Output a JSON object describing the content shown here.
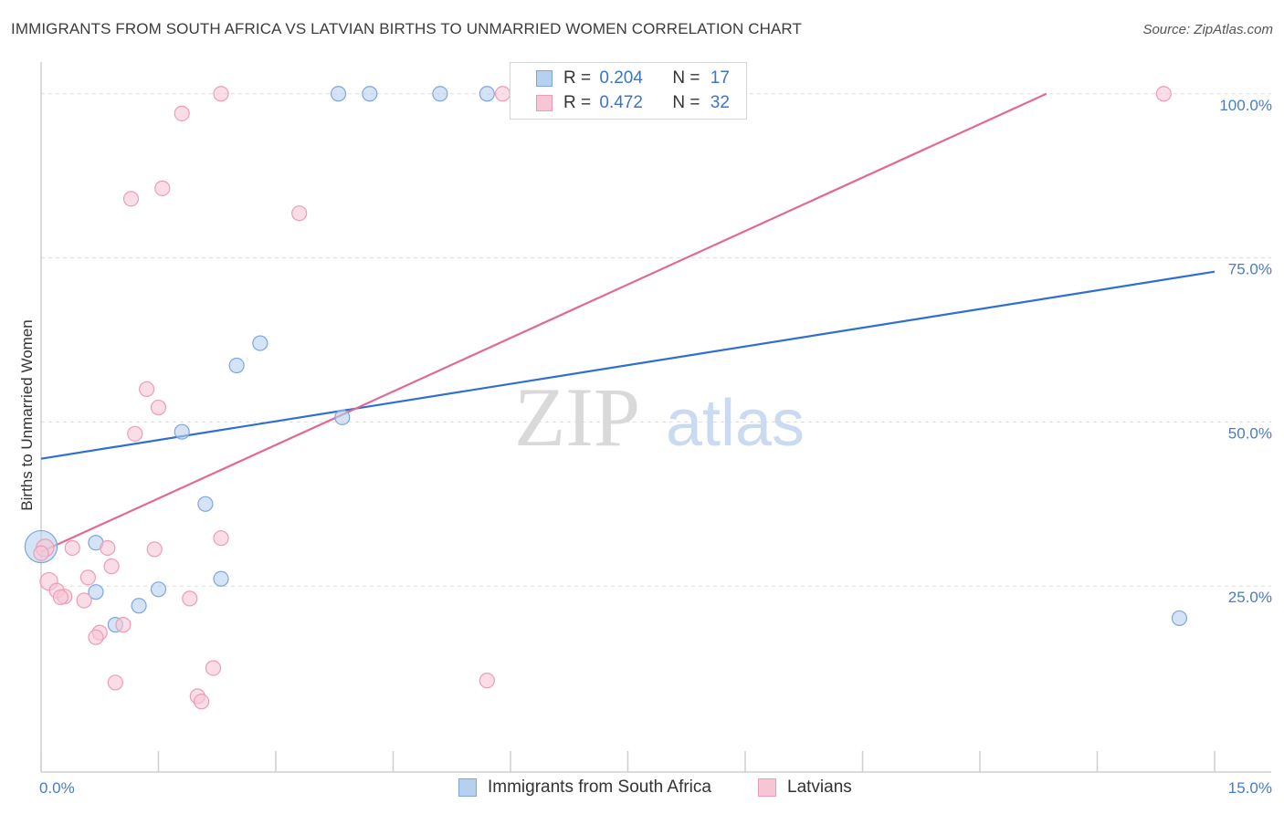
{
  "header": {
    "title": "IMMIGRANTS FROM SOUTH AFRICA VS LATVIAN BIRTHS TO UNMARRIED WOMEN CORRELATION CHART",
    "source": "Source: ZipAtlas.com"
  },
  "watermark": {
    "zip": "ZIP",
    "atlas": "atlas"
  },
  "legend": {
    "r_label": "R =",
    "n_label": "N =",
    "series": [
      {
        "r": "0.204",
        "n": "17"
      },
      {
        "r": "0.472",
        "n": "32"
      }
    ]
  },
  "bottom_legend": [
    "Immigrants from South Africa",
    "Latvians"
  ],
  "colors": {
    "blue_fill": "#b8d0ef",
    "blue_stroke": "#7ea6dd",
    "blue_line": "#2f6fd0",
    "pink_fill": "#f7c6d5",
    "pink_stroke": "#ec9db5",
    "pink_line": "#e06a94",
    "grid": "#dcdcdc",
    "tick": "#4a7cc9"
  },
  "chart_data": {
    "type": "scatter",
    "title": "IMMIGRANTS FROM SOUTH AFRICA VS LATVIAN BIRTHS TO UNMARRIED WOMEN CORRELATION CHART",
    "xlabel": "",
    "ylabel": "Births to Unmarried Women",
    "xlim": [
      0,
      15
    ],
    "ylim": [
      0,
      104
    ],
    "x_tick_labels": [
      {
        "value": 0,
        "label": "0.0%"
      },
      {
        "value": 15,
        "label": "15.0%"
      }
    ],
    "y_tick_labels": [
      {
        "value": 25,
        "label": "25.0%"
      },
      {
        "value": 50,
        "label": "50.0%"
      },
      {
        "value": 75,
        "label": "75.0%"
      },
      {
        "value": 100,
        "label": "100.0%"
      }
    ],
    "series": [
      {
        "name": "Immigrants from South Africa",
        "color": "blue",
        "points": [
          {
            "x": 3.8,
            "y": 100,
            "s": 1
          },
          {
            "x": 4.2,
            "y": 100,
            "s": 1
          },
          {
            "x": 5.1,
            "y": 100,
            "s": 1
          },
          {
            "x": 5.7,
            "y": 100,
            "s": 1
          },
          {
            "x": 2.8,
            "y": 62,
            "s": 1
          },
          {
            "x": 2.5,
            "y": 58.6,
            "s": 1
          },
          {
            "x": 3.85,
            "y": 50.7,
            "s": 1
          },
          {
            "x": 1.8,
            "y": 48.5,
            "s": 1
          },
          {
            "x": 2.1,
            "y": 37.5,
            "s": 1
          },
          {
            "x": 0.0,
            "y": 31,
            "s": 2.2
          },
          {
            "x": 0.7,
            "y": 31.6,
            "s": 1
          },
          {
            "x": 2.3,
            "y": 26.1,
            "s": 1
          },
          {
            "x": 1.5,
            "y": 24.5,
            "s": 1
          },
          {
            "x": 0.7,
            "y": 24.1,
            "s": 1
          },
          {
            "x": 1.25,
            "y": 22,
            "s": 1
          },
          {
            "x": 0.95,
            "y": 19.1,
            "s": 1
          },
          {
            "x": 14.55,
            "y": 20.1,
            "s": 1
          }
        ],
        "trend": {
          "x1": 0,
          "y1": 44.4,
          "x2": 15,
          "y2": 72.9
        }
      },
      {
        "name": "Latvians",
        "color": "pink",
        "points": [
          {
            "x": 2.3,
            "y": 100,
            "s": 1
          },
          {
            "x": 5.9,
            "y": 100,
            "s": 1
          },
          {
            "x": 14.35,
            "y": 100,
            "s": 1
          },
          {
            "x": 1.8,
            "y": 97,
            "s": 1
          },
          {
            "x": 1.55,
            "y": 85.6,
            "s": 1
          },
          {
            "x": 1.15,
            "y": 84,
            "s": 1
          },
          {
            "x": 3.3,
            "y": 81.8,
            "s": 1
          },
          {
            "x": 1.35,
            "y": 55,
            "s": 1
          },
          {
            "x": 1.5,
            "y": 52.2,
            "s": 1
          },
          {
            "x": 1.2,
            "y": 48.2,
            "s": 1
          },
          {
            "x": 2.3,
            "y": 32.3,
            "s": 1
          },
          {
            "x": 0.05,
            "y": 30.8,
            "s": 1.2
          },
          {
            "x": 0.4,
            "y": 30.8,
            "s": 1
          },
          {
            "x": 0.85,
            "y": 30.8,
            "s": 1
          },
          {
            "x": 1.45,
            "y": 30.6,
            "s": 1
          },
          {
            "x": 0.9,
            "y": 28,
            "s": 1
          },
          {
            "x": 0.6,
            "y": 26.3,
            "s": 1
          },
          {
            "x": 0.1,
            "y": 25.7,
            "s": 1.2
          },
          {
            "x": 0.2,
            "y": 24.3,
            "s": 1
          },
          {
            "x": 0.3,
            "y": 23.4,
            "s": 1
          },
          {
            "x": 0.55,
            "y": 22.8,
            "s": 1
          },
          {
            "x": 0.25,
            "y": 23.3,
            "s": 1
          },
          {
            "x": 1.9,
            "y": 23.1,
            "s": 1
          },
          {
            "x": 1.05,
            "y": 19.1,
            "s": 1
          },
          {
            "x": 0.75,
            "y": 17.9,
            "s": 1
          },
          {
            "x": 0.7,
            "y": 17.2,
            "s": 1
          },
          {
            "x": 2.2,
            "y": 12.5,
            "s": 1
          },
          {
            "x": 0.95,
            "y": 10.3,
            "s": 1
          },
          {
            "x": 5.7,
            "y": 10.6,
            "s": 1
          },
          {
            "x": 2.0,
            "y": 8.2,
            "s": 1
          },
          {
            "x": 2.05,
            "y": 7.4,
            "s": 1
          },
          {
            "x": 0.0,
            "y": 30,
            "s": 1
          }
        ],
        "trend": {
          "x1": 0,
          "y1": 30.2,
          "x2": 12.85,
          "y2": 100
        }
      }
    ]
  }
}
